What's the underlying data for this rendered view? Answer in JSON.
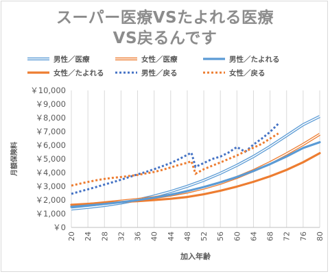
{
  "title_line1": "スーパー医療VSたよれる医療",
  "title_line2": "VS戻るんです",
  "chart_data": {
    "type": "line",
    "title": "スーパー医療VSたよれる医療VS戻るんです",
    "xlabel": "加入年齢",
    "ylabel": "月額保険料",
    "x_ticks": [
      20,
      24,
      28,
      32,
      36,
      40,
      44,
      48,
      52,
      56,
      60,
      64,
      68,
      72,
      76,
      80
    ],
    "y_ticks": [
      0,
      1000,
      2000,
      3000,
      4000,
      5000,
      6000,
      7000,
      8000,
      9000,
      10000
    ],
    "y_tick_labels": [
      "￥0",
      "￥1,000",
      "￥2,000",
      "￥3,000",
      "￥4,000",
      "￥5,000",
      "￥6,000",
      "￥7,000",
      "￥8,000",
      "￥9,000",
      "￥10,000"
    ],
    "xlim": [
      20,
      80
    ],
    "ylim": [
      0,
      10000
    ],
    "grid": "vertical",
    "legend_position": "top",
    "series": [
      {
        "name": "男性／医療",
        "color": "#5b9bd5",
        "style": "double",
        "x": [
          20,
          24,
          28,
          32,
          36,
          40,
          44,
          48,
          52,
          56,
          60,
          64,
          68,
          72,
          76,
          80
        ],
        "y": [
          1340,
          1460,
          1600,
          1780,
          2010,
          2290,
          2620,
          3000,
          3440,
          3950,
          4530,
          5180,
          5910,
          6700,
          7500,
          8100
        ]
      },
      {
        "name": "女性／医療",
        "color": "#ed7d31",
        "style": "double",
        "x": [
          20,
          24,
          28,
          32,
          36,
          40,
          44,
          48,
          52,
          56,
          60,
          64,
          68,
          72,
          76,
          80
        ],
        "y": [
          1560,
          1680,
          1800,
          1920,
          2040,
          2180,
          2360,
          2580,
          2870,
          3220,
          3650,
          4150,
          4730,
          5370,
          6060,
          6800
        ]
      },
      {
        "name": "男性／たよれる",
        "color": "#5b9bd5",
        "style": "thick",
        "x": [
          20,
          24,
          28,
          32,
          36,
          40,
          44,
          48,
          52,
          56,
          60,
          64,
          68,
          72,
          76,
          80
        ],
        "y": [
          1500,
          1600,
          1710,
          1840,
          1990,
          2170,
          2390,
          2650,
          2950,
          3290,
          3680,
          4120,
          4620,
          5180,
          5800,
          6220
        ]
      },
      {
        "name": "女性／たよれる",
        "color": "#ed7d31",
        "style": "thick",
        "x": [
          20,
          24,
          28,
          32,
          36,
          40,
          44,
          48,
          52,
          56,
          60,
          64,
          68,
          72,
          76,
          80
        ],
        "y": [
          1650,
          1720,
          1790,
          1860,
          1920,
          2000,
          2090,
          2220,
          2420,
          2680,
          2980,
          3330,
          3730,
          4200,
          4760,
          5420
        ]
      },
      {
        "name": "男性／戻る",
        "color": "#4472c4",
        "style": "dotted",
        "x": [
          20,
          22,
          24,
          26,
          28,
          30,
          32,
          34,
          36,
          38,
          40,
          42,
          44,
          46,
          48,
          49,
          50,
          52,
          54,
          56,
          58,
          60,
          62,
          64,
          66,
          68,
          70
        ],
        "y": [
          2450,
          2620,
          2780,
          2950,
          3130,
          3300,
          3480,
          3680,
          3870,
          4050,
          4250,
          4470,
          4700,
          4980,
          5300,
          5450,
          4420,
          4700,
          4990,
          5170,
          5470,
          5870,
          5520,
          6050,
          6480,
          6970,
          7570
        ]
      },
      {
        "name": "女性／戻る",
        "color": "#ed7d31",
        "style": "dotted",
        "x": [
          20,
          22,
          24,
          26,
          28,
          30,
          32,
          34,
          36,
          38,
          40,
          42,
          44,
          46,
          48,
          49,
          50,
          52,
          54,
          56,
          58,
          60,
          62,
          64,
          66,
          68,
          70
        ],
        "y": [
          3050,
          3190,
          3320,
          3440,
          3540,
          3620,
          3680,
          3760,
          3830,
          3940,
          4050,
          4200,
          4380,
          4560,
          4720,
          4830,
          3920,
          4250,
          4500,
          4740,
          5000,
          5250,
          5550,
          5820,
          6100,
          6480,
          6860
        ]
      }
    ]
  }
}
